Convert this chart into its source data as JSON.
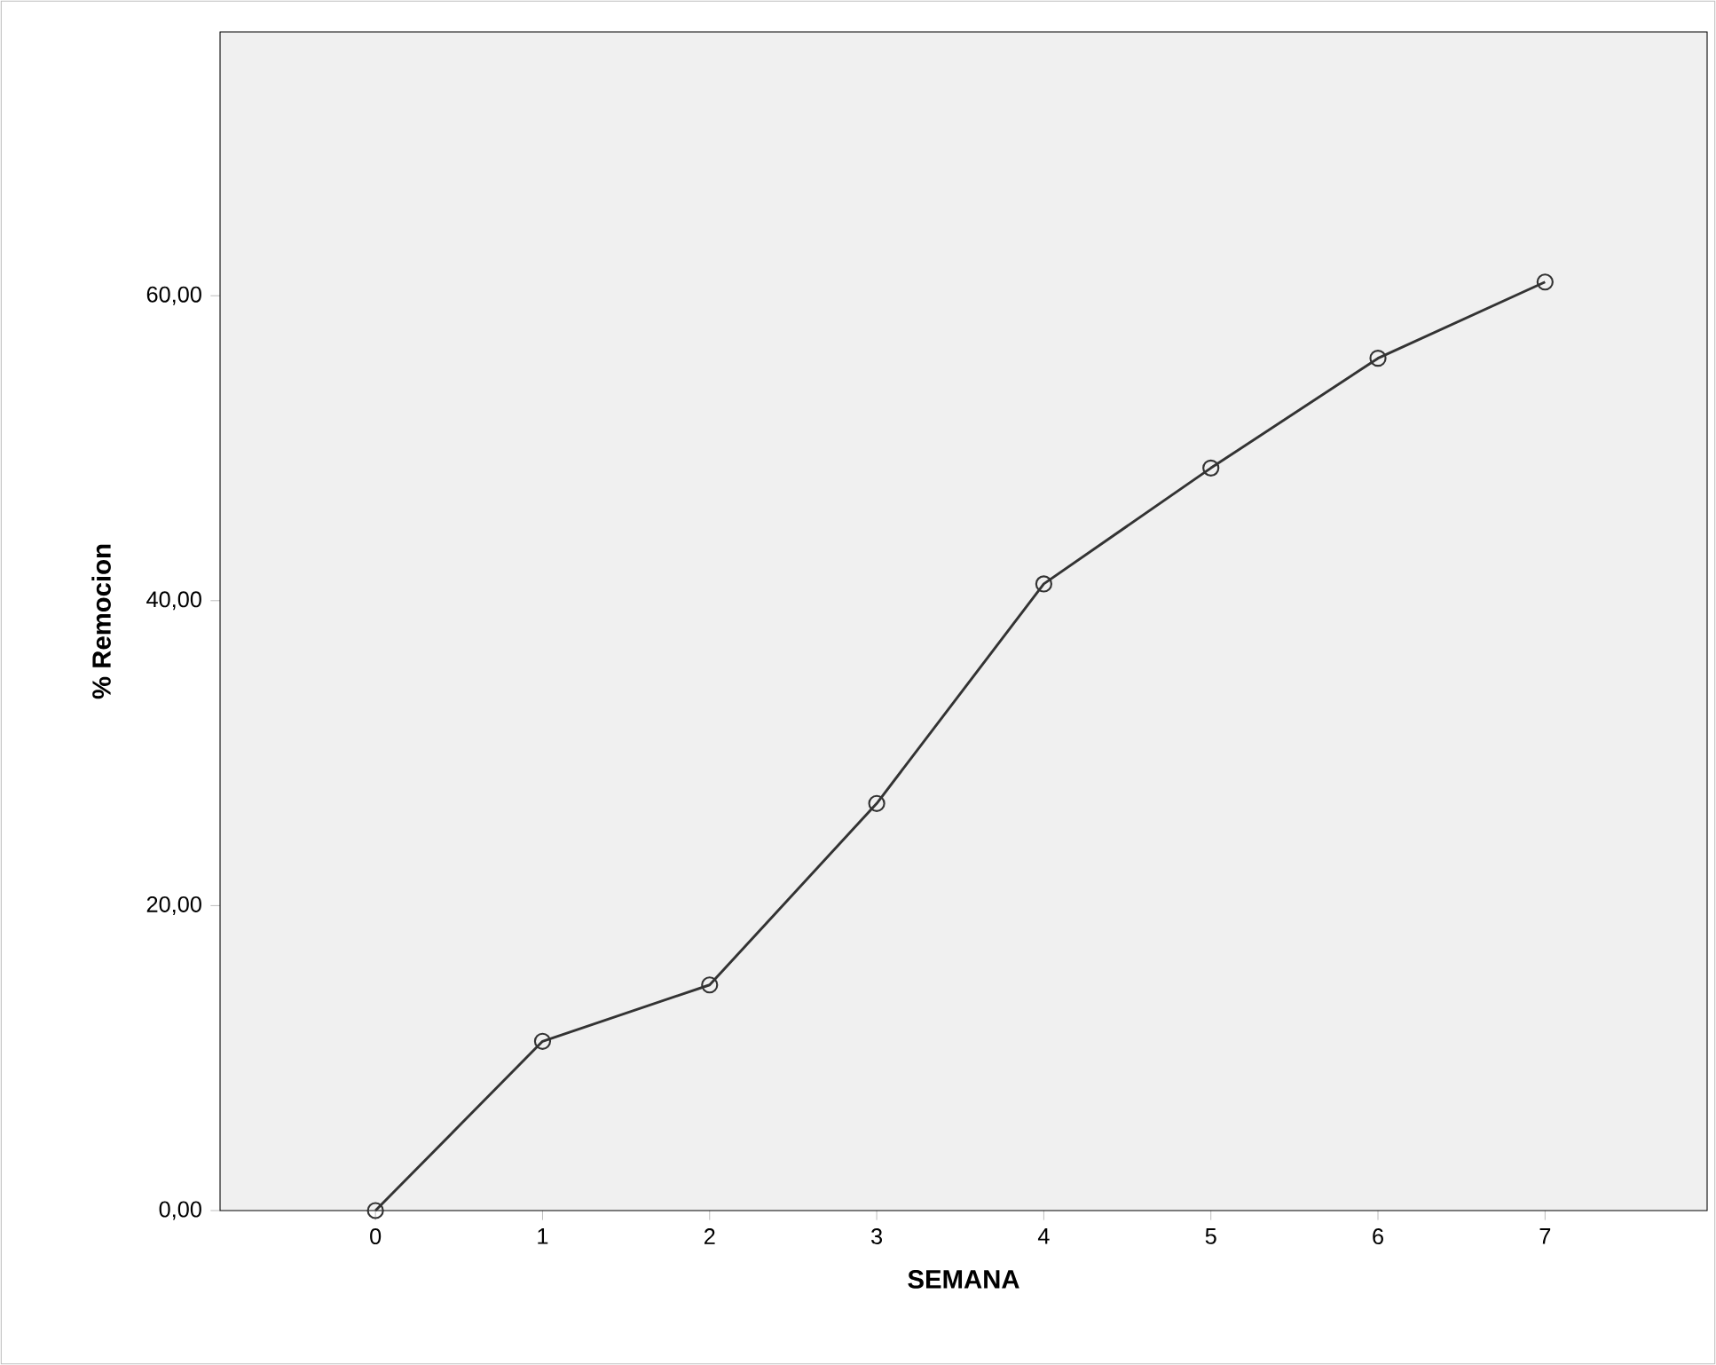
{
  "chart_data": {
    "type": "line",
    "xlabel": "SEMANA",
    "ylabel": "% Remocion",
    "x": [
      0,
      1,
      2,
      3,
      4,
      5,
      6,
      7
    ],
    "series": [
      {
        "color": "#333333",
        "values": [
          0,
          11.1,
          14.8,
          26.7,
          41.1,
          48.7,
          55.9,
          60.9
        ]
      }
    ],
    "xlim": [
      -0.93,
      7.97
    ],
    "ylim": [
      0,
      77.3
    ],
    "xticks": [
      0,
      1,
      2,
      3,
      4,
      5,
      6,
      7
    ],
    "yticks": [
      {
        "value": 0,
        "label": "0,00"
      },
      {
        "value": 20,
        "label": "20,00"
      },
      {
        "value": 40,
        "label": "40,00"
      },
      {
        "value": 60,
        "label": "60,00"
      }
    ],
    "marker": "circle",
    "line_style": "solid",
    "grid": false
  }
}
